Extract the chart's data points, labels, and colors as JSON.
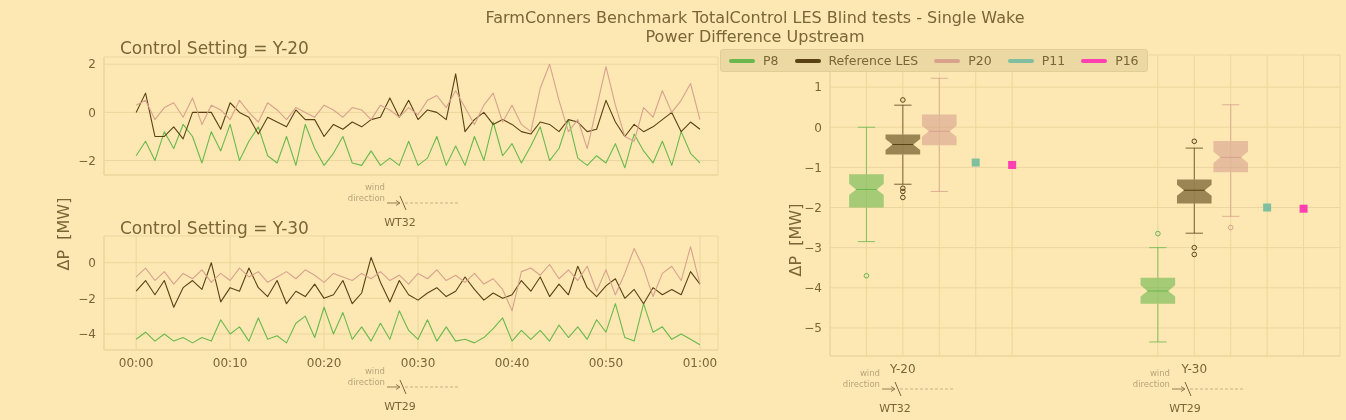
{
  "chart_data": [
    {
      "type": "line",
      "title": "Control Setting = Y-20",
      "annotations": [
        "wind direction",
        "WT32"
      ],
      "x": [
        0,
        0.0167,
        0.0333,
        0.05,
        0.0667,
        0.0833,
        0.1,
        0.1167,
        0.1333,
        0.15,
        0.1667,
        0.1833,
        0.2,
        0.2167,
        0.2333,
        0.25,
        0.2667,
        0.2833,
        0.3,
        0.3167,
        0.3333,
        0.35,
        0.3667,
        0.3833,
        0.4,
        0.4167,
        0.4333,
        0.45,
        0.4667,
        0.4833,
        0.5,
        0.5167,
        0.5333,
        0.55,
        0.5667,
        0.5833,
        0.6,
        0.6167,
        0.6333,
        0.65,
        0.6667,
        0.6833,
        0.7,
        0.7167,
        0.7333,
        0.75,
        0.7667,
        0.7833,
        0.8,
        0.8167,
        0.8333,
        0.85,
        0.8667,
        0.8833,
        0.9,
        0.9167,
        0.9333,
        0.95,
        0.9667,
        0.9833,
        1
      ],
      "xlim": [
        -0.057,
        1.032
      ],
      "xticks": [
        {
          "value": 0,
          "label": null
        },
        {
          "value": 0.1667,
          "label": null
        },
        {
          "value": 0.3333,
          "label": null
        },
        {
          "value": 0.5,
          "label": null
        },
        {
          "value": 0.6667,
          "label": null
        },
        {
          "value": 0.8333,
          "label": null
        },
        {
          "value": 1,
          "label": null
        }
      ],
      "ylim": [
        -2.6,
        2.3
      ],
      "yticks": [
        -2,
        0,
        2
      ],
      "grid": true,
      "tick_labels": "y",
      "series": [
        {
          "color": "#6ab84e",
          "values": [
            -1.8,
            -1.2,
            -2.0,
            -0.8,
            -1.5,
            -0.5,
            -1.0,
            -2.1,
            -0.8,
            -1.6,
            -0.5,
            -2.0,
            -1.2,
            -0.6,
            -1.8,
            -2.1,
            -1.0,
            -2.2,
            -0.5,
            -1.5,
            -2.2,
            -1.7,
            -1.0,
            -2.1,
            -2.2,
            -1.6,
            -2.2,
            -1.9,
            -2.2,
            -1.2,
            -2.2,
            -1.9,
            -1.0,
            -2.2,
            -1.4,
            -2.2,
            -1.0,
            -2.0,
            -0.4,
            -1.8,
            -1.3,
            -2.1,
            -1.4,
            -0.6,
            -2.0,
            -1.5,
            -0.3,
            -1.9,
            -2.2,
            -1.8,
            -2.1,
            -1.3,
            -2.3,
            -0.9,
            -1.6,
            -2.1,
            -1.2,
            -2.2,
            -0.8,
            -1.7,
            -2.1
          ]
        },
        {
          "color": "#5a4214",
          "values": [
            0,
            0.8,
            -1.0,
            -1.0,
            -0.6,
            -1.1,
            0,
            0,
            0,
            -0.7,
            0.4,
            0,
            -0.2,
            -0.9,
            -0.2,
            -0.4,
            -0.6,
            0.1,
            -0.3,
            -0.3,
            -1.0,
            -0.5,
            -0.7,
            -0.4,
            -0.6,
            -0.3,
            -0.2,
            0.6,
            -0.2,
            0.5,
            -0.3,
            0.1,
            0,
            -0.3,
            1.6,
            -0.8,
            -0.3,
            0,
            -0.5,
            -0.3,
            -0.5,
            -0.8,
            -0.9,
            -0.4,
            -0.5,
            -0.8,
            -0.3,
            -0.4,
            -0.8,
            -0.7,
            0.5,
            -0.4,
            -1.0,
            -0.5,
            -0.8,
            -0.6,
            -0.3,
            0,
            -0.8,
            -0.4,
            -0.7
          ]
        },
        {
          "color": "#d7a28e",
          "values": [
            0.3,
            0.5,
            -0.3,
            0.2,
            0.4,
            -0.2,
            0.6,
            -0.5,
            0.3,
            0.1,
            -0.3,
            0.5,
            0,
            -0.4,
            0.4,
            0.1,
            -0.3,
            0.2,
            0,
            -0.2,
            0.3,
            0.1,
            -0.2,
            0.2,
            0.1,
            -0.3,
            0.3,
            0.1,
            -0.2,
            0.2,
            -0.1,
            0.5,
            0.7,
            0.2,
            0.9,
            0.2,
            -0.5,
            0.3,
            0.8,
            -0.4,
            0.3,
            -0.5,
            -0.8,
            1.0,
            2.0,
            0.5,
            -0.8,
            -0.3,
            -1.5,
            0.2,
            1.9,
            0.3,
            -1.0,
            -1.2,
            0.2,
            -0.2,
            0.9,
            0,
            0.5,
            1.2,
            -0.3
          ]
        }
      ]
    },
    {
      "type": "line",
      "title": "Control Setting = Y-30",
      "ylabel": "ΔP  [MW]",
      "annotations": [
        "wind direction",
        "WT29"
      ],
      "x": [
        0,
        0.0167,
        0.0333,
        0.05,
        0.0667,
        0.0833,
        0.1,
        0.1167,
        0.1333,
        0.15,
        0.1667,
        0.1833,
        0.2,
        0.2167,
        0.2333,
        0.25,
        0.2667,
        0.2833,
        0.3,
        0.3167,
        0.3333,
        0.35,
        0.3667,
        0.3833,
        0.4,
        0.4167,
        0.4333,
        0.45,
        0.4667,
        0.4833,
        0.5,
        0.5167,
        0.5333,
        0.55,
        0.5667,
        0.5833,
        0.6,
        0.6167,
        0.6333,
        0.65,
        0.6667,
        0.6833,
        0.7,
        0.7167,
        0.7333,
        0.75,
        0.7667,
        0.7833,
        0.8,
        0.8167,
        0.8333,
        0.85,
        0.8667,
        0.8833,
        0.9,
        0.9167,
        0.9333,
        0.95,
        0.9667,
        0.9833,
        1
      ],
      "xlim": [
        -0.057,
        1.032
      ],
      "xticks": [
        {
          "value": 0,
          "label": "00:00"
        },
        {
          "value": 0.1667,
          "label": "00:10"
        },
        {
          "value": 0.3333,
          "label": "00:20"
        },
        {
          "value": 0.5,
          "label": "00:30"
        },
        {
          "value": 0.6667,
          "label": "00:40"
        },
        {
          "value": 0.8333,
          "label": "00:50"
        },
        {
          "value": 1,
          "label": "01:00"
        }
      ],
      "ylim": [
        -4.9,
        1.5
      ],
      "yticks": [
        -4,
        -2,
        0
      ],
      "grid": true,
      "series": [
        {
          "color": "#6ab84e",
          "values": [
            -4.3,
            -3.9,
            -4.4,
            -4.0,
            -4.4,
            -4.2,
            -4.5,
            -4.2,
            -4.4,
            -3.2,
            -4.0,
            -3.6,
            -4.4,
            -3.1,
            -4.3,
            -4.1,
            -4.5,
            -3.4,
            -3.0,
            -4.2,
            -2.5,
            -4.0,
            -2.8,
            -4.3,
            -3.6,
            -4.4,
            -3.4,
            -4.3,
            -2.7,
            -3.8,
            -4.3,
            -3.2,
            -4.4,
            -3.6,
            -4.4,
            -4.3,
            -4.5,
            -4.2,
            -3.7,
            -3.1,
            -4.4,
            -3.8,
            -4.3,
            -3.8,
            -4.4,
            -3.5,
            -4.2,
            -3.6,
            -4.3,
            -3.2,
            -3.9,
            -2.3,
            -4.2,
            -4.4,
            -2.3,
            -3.9,
            -3.6,
            -4.3,
            -4.0,
            -4.3,
            -4.6
          ]
        },
        {
          "color": "#5a4214",
          "values": [
            -1.6,
            -1.0,
            -1.8,
            -1.0,
            -2.5,
            -1.4,
            -1.0,
            -1.5,
            0,
            -2.2,
            -1.4,
            -1.6,
            -0.3,
            -1.4,
            -1.9,
            -1.0,
            -2.3,
            -1.6,
            -1.9,
            -1.2,
            -2.0,
            -1.8,
            -1.0,
            -2.3,
            -1.7,
            0.3,
            -1.1,
            -2.2,
            -1.0,
            -1.8,
            -2.1,
            -1.7,
            -1.4,
            -1.9,
            -1.6,
            -0.8,
            -1.5,
            -2.1,
            -1.7,
            -2.0,
            -1.8,
            -1.0,
            -1.6,
            -0.8,
            -1.9,
            -1.2,
            -1.8,
            -0.2,
            -1.4,
            -1.9,
            -1.3,
            -0.9,
            -2.0,
            -1.5,
            -2.3,
            -1.4,
            -1.8,
            -1.5,
            -1.8,
            -0.5,
            -1.2
          ]
        },
        {
          "color": "#d7a28e",
          "values": [
            -0.8,
            -0.3,
            -1.0,
            -0.5,
            -1.2,
            -0.6,
            -0.9,
            -0.4,
            -1.1,
            -0.6,
            -1.0,
            -0.3,
            -0.8,
            -0.5,
            -1.1,
            -0.8,
            -0.5,
            -0.9,
            -0.4,
            -0.7,
            -1.1,
            -0.6,
            -0.8,
            -1.0,
            -0.6,
            -0.9,
            -0.5,
            -1.0,
            -0.7,
            -1.2,
            -0.6,
            -0.9,
            -0.4,
            -1.0,
            -0.7,
            -1.1,
            -0.6,
            -1.2,
            -0.9,
            -1.5,
            -2.7,
            -0.5,
            -0.3,
            -0.7,
            -0.1,
            -0.9,
            -0.4,
            -1.0,
            -0.2,
            -1.6,
            -0.4,
            -1.8,
            -0.6,
            0.8,
            -0.3,
            -1.9,
            -0.6,
            -0.2,
            -1.0,
            0.9,
            -1.2
          ]
        }
      ]
    },
    {
      "type": "box",
      "title": "FarmConners Benchmark TotalControl LES Blind tests - Single Wake",
      "subtitle": "Power Difference Upstream",
      "ylabel": "ΔP  [MW]",
      "annotations": [
        "wind direction",
        "WT32",
        "wind direction",
        "WT29"
      ],
      "categories": [
        "Y-20",
        "Y-30"
      ],
      "ylim": [
        -5.7,
        1.8
      ],
      "yticks": [
        -5,
        -4,
        -3,
        -2,
        -1,
        0,
        1
      ],
      "grid": true,
      "legend": "top",
      "series": [
        {
          "name": "P8",
          "color": "#6ab84e",
          "boxes": [
            {
              "low": -2.85,
              "q1": -2.0,
              "median": -1.55,
              "q3": -1.17,
              "high": 0.0,
              "outliers": [
                -3.7
              ]
            },
            {
              "low": -5.35,
              "q1": -4.4,
              "median": -4.08,
              "q3": -3.75,
              "high": -3.0,
              "outliers": [
                -2.65
              ]
            }
          ]
        },
        {
          "name": "Reference LES",
          "color": "#5a4214",
          "boxes": [
            {
              "low": -1.42,
              "q1": -0.68,
              "median": -0.43,
              "q3": -0.18,
              "high": 0.55,
              "outliers": [
                0.68,
                -1.52,
                -1.6,
                -1.75
              ]
            },
            {
              "low": -2.64,
              "q1": -1.9,
              "median": -1.57,
              "q3": -1.3,
              "high": -0.52,
              "outliers": [
                -0.35,
                -3.0,
                -3.17
              ]
            }
          ]
        },
        {
          "name": "P20",
          "color": "#d7a28e",
          "boxes": [
            {
              "low": -1.6,
              "q1": -0.45,
              "median": -0.1,
              "q3": 0.32,
              "high": 1.22
            },
            {
              "low": -2.22,
              "q1": -1.12,
              "median": -0.75,
              "q3": -0.34,
              "high": 0.56,
              "outliers": [
                -2.5
              ]
            }
          ]
        },
        {
          "name": "P11",
          "type": "scatter",
          "marker": "square",
          "color": "#7fbfa0",
          "x": [
            "Y-20",
            "Y-30"
          ],
          "values": [
            -0.88,
            -2.0
          ]
        },
        {
          "name": "P16",
          "type": "scatter",
          "marker": "square",
          "color": "#ff40b0",
          "x": [
            "Y-20",
            "Y-30"
          ],
          "values": [
            -0.94,
            -2.03
          ]
        }
      ]
    }
  ]
}
